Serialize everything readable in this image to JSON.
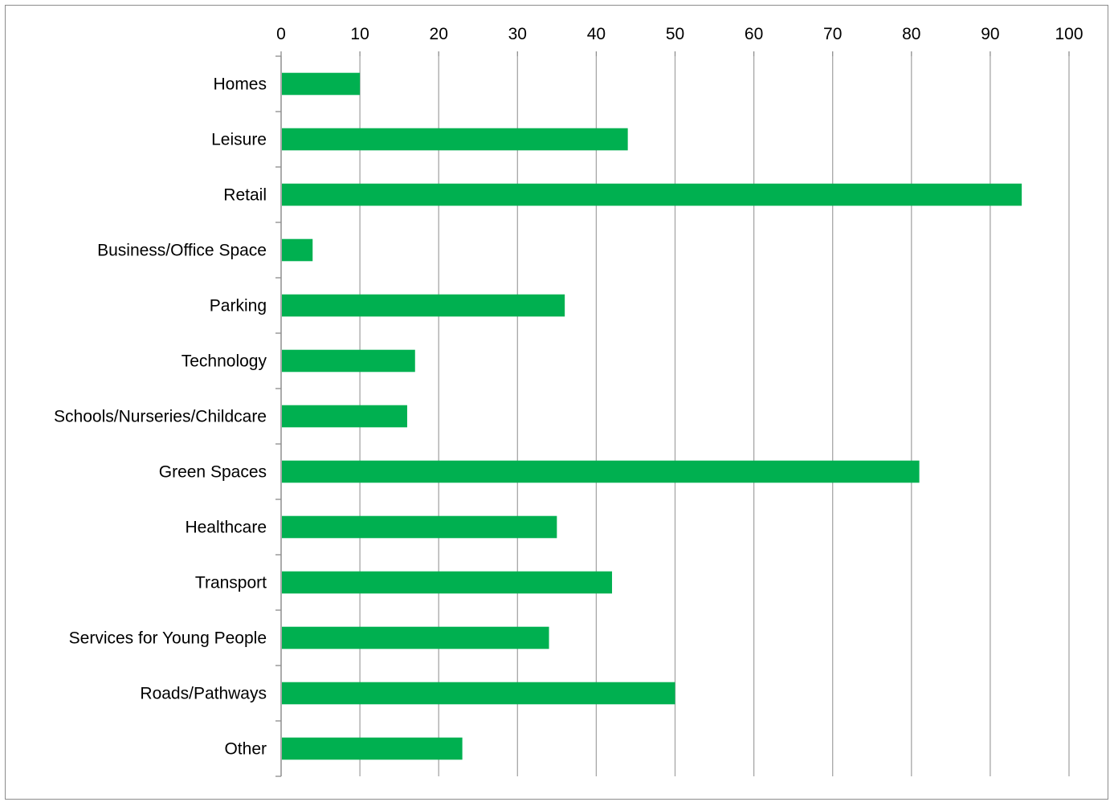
{
  "chart_data": {
    "type": "bar",
    "orientation": "horizontal",
    "title": "",
    "xlabel": "",
    "ylabel": "",
    "categories": [
      "Homes",
      "Leisure",
      "Retail",
      "Business/Office Space",
      "Parking",
      "Technology",
      "Schools/Nurseries/Childcare",
      "Green Spaces",
      "Healthcare",
      "Transport",
      "Services for Young People",
      "Roads/Pathways",
      "Other"
    ],
    "values": [
      10,
      44,
      94,
      4,
      36,
      17,
      16,
      81,
      35,
      42,
      34,
      50,
      23
    ],
    "xlim": [
      0,
      100
    ],
    "x_ticks": [
      "0",
      "10",
      "20",
      "30",
      "40",
      "50",
      "60",
      "70",
      "80",
      "90",
      "100"
    ],
    "x_axis_position": "top",
    "grid": "vertical",
    "legend": "none",
    "colors": {
      "bar": "#00b050",
      "grid": "#a6a6a6",
      "axis": "#8c8c8c",
      "text": "#000000"
    }
  }
}
